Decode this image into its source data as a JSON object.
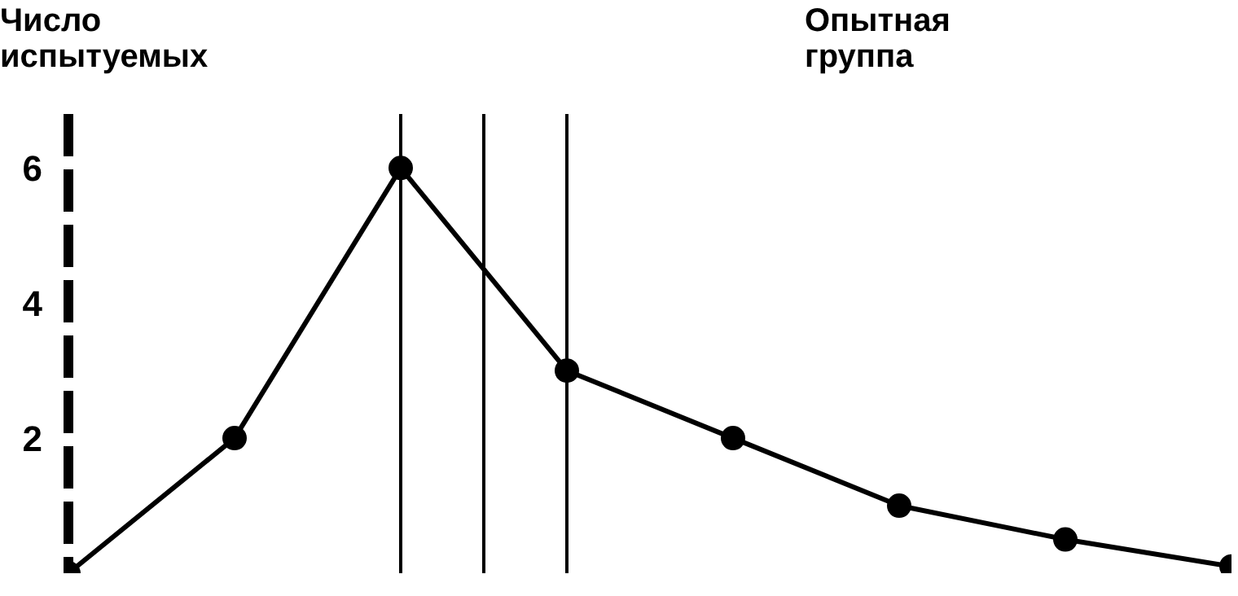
{
  "chart_data": {
    "type": "line",
    "title": "Опытная группа",
    "ylabel": "Число испытуемых",
    "categories": [
      null,
      null,
      null,
      null,
      null,
      null,
      null,
      null
    ],
    "series": [
      {
        "color": "#000000",
        "values": [
          0,
          2,
          6,
          3,
          2,
          1,
          0.5,
          0.1
        ]
      }
    ],
    "ylim": [
      0,
      6.8
    ],
    "yticks": [
      2,
      4,
      6
    ],
    "tick_labels": "y",
    "grid": false,
    "legend": false,
    "marker": "circle",
    "line_style": "solid"
  }
}
